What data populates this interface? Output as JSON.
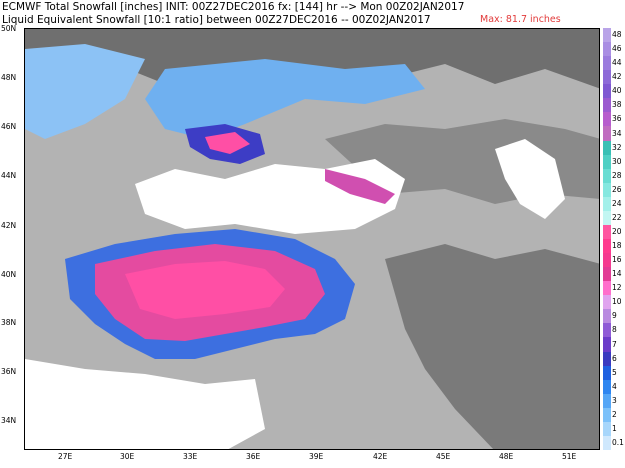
{
  "title": {
    "line1": "ECMWF Total Snowfall [inches] INIT: 00Z27DEC2016 fx: [144] hr --> Mon 00Z02JAN2017",
    "line2": "Liquid Equivalent Snowfall [10:1 ratio] between 00Z27DEC2016 -- 00Z02JAN2017",
    "max": "Max: 81.7 inches"
  },
  "lat_labels": [
    "50N",
    "48N",
    "46N",
    "44N",
    "42N",
    "40N",
    "38N",
    "36N",
    "34N"
  ],
  "lon_labels": [
    "27E",
    "30E",
    "33E",
    "36E",
    "39E",
    "42E",
    "45E",
    "48E",
    "51E"
  ],
  "colorbar": {
    "labels": [
      "48",
      "46",
      "44",
      "42",
      "40",
      "38",
      "36",
      "34",
      "32",
      "30",
      "28",
      "26",
      "24",
      "22",
      "20",
      "18",
      "16",
      "14",
      "12",
      "10",
      "9",
      "8",
      "7",
      "6",
      "5",
      "4",
      "3",
      "2",
      "1",
      "0.1"
    ],
    "colors": [
      "#b9a4e8",
      "#a98ee3",
      "#9b7cde",
      "#8d6ad8",
      "#7f58d2",
      "#9b5ad0",
      "#b75ccd",
      "#c06cc0",
      "#39c0b5",
      "#4fd0c4",
      "#69ddd3",
      "#85e8e0",
      "#a3f0ea",
      "#c2f6f2",
      "#ff55a0",
      "#ff3b8e",
      "#f53a8f",
      "#e23c95",
      "#ff6fcc",
      "#e0a3ef",
      "#b98ae0",
      "#8f5bd6",
      "#6b3cc9",
      "#3a3ac0",
      "#1f60e0",
      "#2f86f0",
      "#55a6f6",
      "#7cc1fa",
      "#a7d6fb",
      "#cfe8fd"
    ],
    "gray_scale": [
      "#444444",
      "#6a6a6a",
      "#8c8c8c",
      "#b0b0b0",
      "#d0d0d0"
    ]
  }
}
